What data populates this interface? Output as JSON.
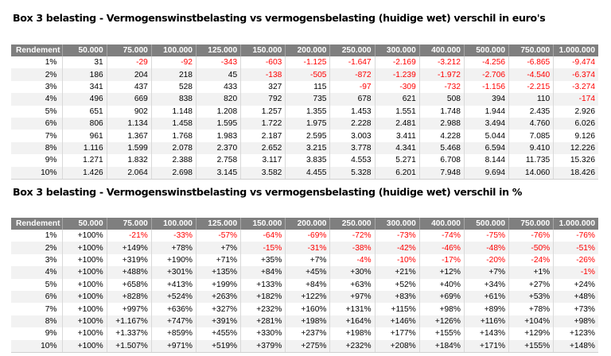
{
  "colors": {
    "header_bg": "#7f7f7f",
    "header_text": "#ffffff",
    "stripe": "#f2f2f2",
    "negative": "#ff0000"
  },
  "tables": [
    {
      "title": "Box 3 belasting - Vermogenswinstbelasting vs vermogensbelasting (huidige wet) verschil in euro's",
      "headers": [
        "Rendement",
        "50.000",
        "75.000",
        "100.000",
        "125.000",
        "150.000",
        "200.000",
        "250.000",
        "300.000",
        "400.000",
        "500.000",
        "750.000",
        "1.000.000"
      ],
      "rows": [
        [
          "1%",
          "31",
          "-29",
          "-92",
          "-343",
          "-603",
          "-1.125",
          "-1.647",
          "-2.169",
          "-3.212",
          "-4.256",
          "-6.865",
          "-9.474"
        ],
        [
          "2%",
          "186",
          "204",
          "218",
          "45",
          "-138",
          "-505",
          "-872",
          "-1.239",
          "-1.972",
          "-2.706",
          "-4.540",
          "-6.374"
        ],
        [
          "3%",
          "341",
          "437",
          "528",
          "433",
          "327",
          "115",
          "-97",
          "-309",
          "-732",
          "-1.156",
          "-2.215",
          "-3.274"
        ],
        [
          "4%",
          "496",
          "669",
          "838",
          "820",
          "792",
          "735",
          "678",
          "621",
          "508",
          "394",
          "110",
          "-174"
        ],
        [
          "5%",
          "651",
          "902",
          "1.148",
          "1.208",
          "1.257",
          "1.355",
          "1.453",
          "1.551",
          "1.748",
          "1.944",
          "2.435",
          "2.926"
        ],
        [
          "6%",
          "806",
          "1.134",
          "1.458",
          "1.595",
          "1.722",
          "1.975",
          "2.228",
          "2.481",
          "2.988",
          "3.494",
          "4.760",
          "6.026"
        ],
        [
          "7%",
          "961",
          "1.367",
          "1.768",
          "1.983",
          "2.187",
          "2.595",
          "3.003",
          "3.411",
          "4.228",
          "5.044",
          "7.085",
          "9.126"
        ],
        [
          "8%",
          "1.116",
          "1.599",
          "2.078",
          "2.370",
          "2.652",
          "3.215",
          "3.778",
          "4.341",
          "5.468",
          "6.594",
          "9.410",
          "12.226"
        ],
        [
          "9%",
          "1.271",
          "1.832",
          "2.388",
          "2.758",
          "3.117",
          "3.835",
          "4.553",
          "5.271",
          "6.708",
          "8.144",
          "11.735",
          "15.326"
        ],
        [
          "10%",
          "1.426",
          "2.064",
          "2.698",
          "3.145",
          "3.582",
          "4.455",
          "5.328",
          "6.201",
          "7.948",
          "9.694",
          "14.060",
          "18.426"
        ]
      ]
    },
    {
      "title": "Box 3 belasting - Vermogenswinstbelasting vs vermogensbelasting (huidige wet) verschil in %",
      "headers": [
        "Rendement",
        "50.000",
        "75.000",
        "100.000",
        "125.000",
        "150.000",
        "200.000",
        "250.000",
        "300.000",
        "400.000",
        "500.000",
        "750.000",
        "1.000.000"
      ],
      "rows": [
        [
          "1%",
          "+100%",
          "-21%",
          "-33%",
          "-57%",
          "-64%",
          "-69%",
          "-72%",
          "-73%",
          "-74%",
          "-75%",
          "-76%",
          "-76%"
        ],
        [
          "2%",
          "+100%",
          "+149%",
          "+78%",
          "+7%",
          "-15%",
          "-31%",
          "-38%",
          "-42%",
          "-46%",
          "-48%",
          "-50%",
          "-51%"
        ],
        [
          "3%",
          "+100%",
          "+319%",
          "+190%",
          "+71%",
          "+35%",
          "+7%",
          "-4%",
          "-10%",
          "-17%",
          "-20%",
          "-24%",
          "-26%"
        ],
        [
          "4%",
          "+100%",
          "+488%",
          "+301%",
          "+135%",
          "+84%",
          "+45%",
          "+30%",
          "+21%",
          "+12%",
          "+7%",
          "+1%",
          "-1%"
        ],
        [
          "5%",
          "+100%",
          "+658%",
          "+413%",
          "+199%",
          "+133%",
          "+84%",
          "+63%",
          "+52%",
          "+40%",
          "+34%",
          "+27%",
          "+24%"
        ],
        [
          "6%",
          "+100%",
          "+828%",
          "+524%",
          "+263%",
          "+182%",
          "+122%",
          "+97%",
          "+83%",
          "+69%",
          "+61%",
          "+53%",
          "+48%"
        ],
        [
          "7%",
          "+100%",
          "+997%",
          "+636%",
          "+327%",
          "+232%",
          "+160%",
          "+131%",
          "+115%",
          "+98%",
          "+89%",
          "+78%",
          "+73%"
        ],
        [
          "8%",
          "+100%",
          "+1.167%",
          "+747%",
          "+391%",
          "+281%",
          "+198%",
          "+164%",
          "+146%",
          "+126%",
          "+116%",
          "+104%",
          "+98%"
        ],
        [
          "9%",
          "+100%",
          "+1.337%",
          "+859%",
          "+455%",
          "+330%",
          "+237%",
          "+198%",
          "+177%",
          "+155%",
          "+143%",
          "+129%",
          "+123%"
        ],
        [
          "10%",
          "+100%",
          "+1.507%",
          "+971%",
          "+519%",
          "+379%",
          "+275%",
          "+232%",
          "+208%",
          "+184%",
          "+171%",
          "+155%",
          "+148%"
        ]
      ]
    }
  ]
}
